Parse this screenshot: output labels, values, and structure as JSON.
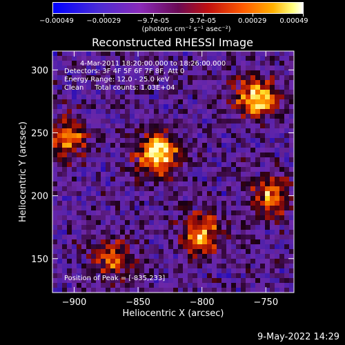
{
  "colorbar": {
    "ticks": [
      "-0.00049",
      "-0.00029",
      "-9.7e-05",
      "9.7e-05",
      "0.00029",
      "0.00049"
    ],
    "tick_values": [
      -0.00049,
      -0.00029,
      -9.7e-05,
      9.7e-05,
      0.00029,
      0.00049
    ],
    "unit": "(photons cm⁻² s⁻¹ asec⁻²)"
  },
  "chart_data": {
    "type": "heatmap",
    "title": "Reconstructed RHESSI Image",
    "xlabel": "Heliocentric X (arcsec)",
    "ylabel": "Heliocentric Y (arcsec)",
    "xlim": [
      -917,
      -728
    ],
    "ylim": [
      123,
      315
    ],
    "xticks": [
      -900,
      -850,
      -800,
      -750
    ],
    "yticks": [
      150,
      200,
      250,
      300
    ],
    "xtick_labels": [
      "−900",
      "−850",
      "−800",
      "−750"
    ],
    "ytick_labels": [
      "150",
      "200",
      "250",
      "300"
    ],
    "zlim": [
      -0.00049,
      0.00049
    ],
    "hotspots": [
      {
        "x": -835,
        "y": 233,
        "intensity": 1.0
      },
      {
        "x": -757,
        "y": 278,
        "intensity": 0.85
      },
      {
        "x": -800,
        "y": 170,
        "intensity": 0.75
      },
      {
        "x": -745,
        "y": 200,
        "intensity": 0.65
      },
      {
        "x": -905,
        "y": 245,
        "intensity": 0.6
      },
      {
        "x": -870,
        "y": 150,
        "intensity": 0.5
      }
    ],
    "annotations": [
      "4-Mar-2011 18:20:00.000 to 18:26:00.000",
      "Detectors: 3F 4F 5F 6F 7F 8F, Att 0",
      "Energy Range: 12.0 - 25.0 keV",
      "Clean     Total counts: 1.03E+04"
    ],
    "peak_label": "Position of Peak = [-835,233]"
  },
  "footer": {
    "date": "9-May-2022 14:29"
  }
}
